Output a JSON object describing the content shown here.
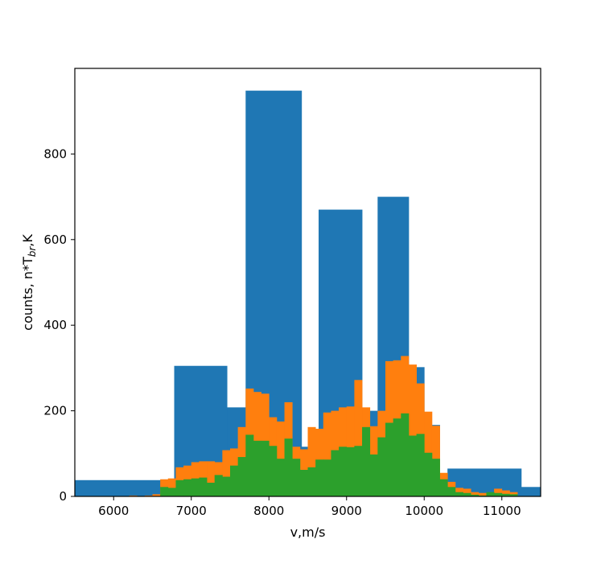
{
  "chart_data": {
    "type": "bar",
    "subtype": "histogram-overlay",
    "xlabel": "v,m/s",
    "ylabel_parts": {
      "before": "counts, n*T",
      "subscript": "br",
      "after": ",K"
    },
    "xlim": [
      5500,
      11500
    ],
    "ylim": [
      0,
      1000
    ],
    "xticks": [
      6000,
      7000,
      8000,
      9000,
      10000,
      11000
    ],
    "yticks": [
      0,
      200,
      400,
      600,
      800
    ],
    "grid": false,
    "series": [
      {
        "color": "#1f77b4",
        "edges": [
          5500,
          6780,
          7460,
          7700,
          8420,
          8640,
          9200,
          9400,
          9800,
          10000,
          10200,
          10300,
          11250,
          11500
        ],
        "counts": [
          38,
          305,
          208,
          948,
          116,
          670,
          200,
          700,
          302,
          167,
          0,
          65,
          22
        ]
      },
      {
        "color": "#ff7f0e",
        "edges": [
          6200,
          6300,
          6400,
          6500,
          6600,
          6700,
          6800,
          6900,
          7000,
          7100,
          7200,
          7300,
          7400,
          7500,
          7600,
          7700,
          7800,
          7900,
          8000,
          8100,
          8200,
          8300,
          8400,
          8500,
          8600,
          8700,
          8800,
          8900,
          9000,
          9100,
          9200,
          9300,
          9400,
          9500,
          9600,
          9700,
          9800,
          9900,
          10000,
          10100,
          10200,
          10300,
          10400,
          10500,
          10600,
          10700,
          10800,
          10900,
          11000,
          11100,
          11200
        ],
        "counts": [
          2,
          1,
          2,
          5,
          40,
          42,
          68,
          72,
          80,
          82,
          82,
          80,
          108,
          112,
          162,
          252,
          244,
          240,
          185,
          175,
          220,
          116,
          110,
          162,
          158,
          196,
          200,
          208,
          210,
          272,
          208,
          164,
          200,
          316,
          318,
          328,
          308,
          264,
          198,
          165,
          55,
          34,
          20,
          18,
          10,
          8,
          6,
          18,
          14,
          10
        ]
      },
      {
        "color": "#2ca02c",
        "edges": [
          6600,
          6700,
          6800,
          6900,
          7000,
          7100,
          7200,
          7300,
          7400,
          7500,
          7600,
          7700,
          7800,
          7900,
          8000,
          8100,
          8200,
          8300,
          8400,
          8500,
          8600,
          8700,
          8800,
          8900,
          9000,
          9100,
          9200,
          9300,
          9400,
          9500,
          9600,
          9700,
          9800,
          9900,
          10000,
          10100,
          10200,
          10300,
          10400,
          10500,
          10600,
          10700,
          10800,
          10900,
          11000,
          11100,
          11200
        ],
        "counts": [
          22,
          20,
          38,
          40,
          42,
          44,
          32,
          50,
          46,
          72,
          92,
          144,
          130,
          130,
          118,
          88,
          135,
          88,
          62,
          68,
          86,
          86,
          108,
          116,
          115,
          118,
          162,
          98,
          138,
          172,
          182,
          194,
          142,
          146,
          102,
          88,
          40,
          22,
          10,
          8,
          4,
          2,
          10,
          8,
          6,
          5
        ]
      }
    ]
  }
}
